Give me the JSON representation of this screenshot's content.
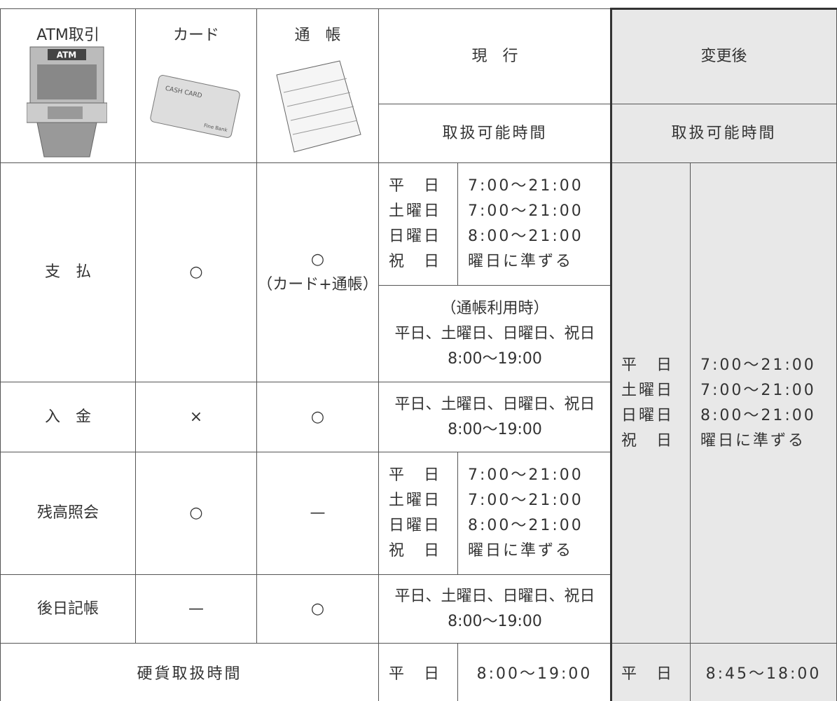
{
  "header": {
    "atm": "ATM取引",
    "card": "カード",
    "passbook": "通　帳",
    "current": "現　行",
    "changed": "変更後",
    "current_sub": "取扱可能時間",
    "changed_sub": "取扱可能時間"
  },
  "images": {
    "atm_label": "ATM",
    "card_label": "CASH CARD",
    "card_bank": "Fine Bank"
  },
  "rows": {
    "payment": {
      "label": "支　払",
      "card": "○",
      "passbook": [
        "○",
        "（カード+通帳）"
      ],
      "current_days": [
        "平　日",
        "土曜日",
        "日曜日",
        "祝　日"
      ],
      "current_times": [
        "7:00～21:00",
        "7:00～21:00",
        "8:00～21:00",
        "曜日に準ずる"
      ],
      "passbook_note": [
        "（通帳利用時）",
        "平日、土曜日、日曜日、祝日",
        "8:00～19:00"
      ]
    },
    "deposit": {
      "label": "入　金",
      "card": "×",
      "passbook": "○",
      "hours": [
        "平日、土曜日、日曜日、祝日",
        "8:00～19:00"
      ]
    },
    "balance": {
      "label": "残高照会",
      "card": "○",
      "passbook": "—",
      "current_days": [
        "平　日",
        "土曜日",
        "日曜日",
        "祝　日"
      ],
      "current_times": [
        "7:00～21:00",
        "7:00～21:00",
        "8:00～21:00",
        "曜日に準ずる"
      ]
    },
    "later": {
      "label": "後日記帳",
      "card": "—",
      "passbook": "○",
      "hours": [
        "平日、土曜日、日曜日、祝日",
        "8:00～19:00"
      ]
    },
    "coin": {
      "label": "硬貨取扱時間",
      "current_day": "平　日",
      "current_time": "8:00～19:00",
      "changed_day": "平　日",
      "changed_time": "8:45～18:00"
    }
  },
  "changed": {
    "days": [
      "平　日",
      "土曜日",
      "日曜日",
      "祝　日"
    ],
    "times": [
      "7:00～21:00",
      "7:00～21:00",
      "8:00～21:00",
      "曜日に準ずる"
    ]
  }
}
